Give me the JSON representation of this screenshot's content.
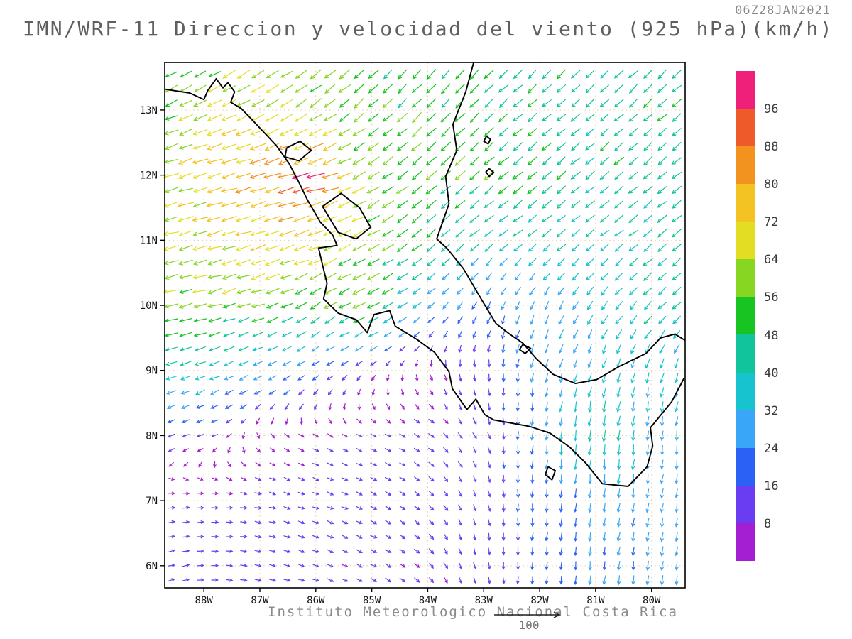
{
  "header": {
    "model_title": "IMN/WRF-11 Direccion y velocidad del viento (925 hPa)(km/h)",
    "datetime": "06Z28JAN2021"
  },
  "footer": {
    "caption": "Instituto Meteorologico Nacional Costa Rica",
    "reference_vector_label": "100"
  },
  "axes": {
    "lat": [
      {
        "label": "13N",
        "value": 13
      },
      {
        "label": "12N",
        "value": 12
      },
      {
        "label": "11N",
        "value": 11
      },
      {
        "label": "10N",
        "value": 10
      },
      {
        "label": "9N",
        "value": 9
      },
      {
        "label": "8N",
        "value": 8
      },
      {
        "label": "7N",
        "value": 7
      },
      {
        "label": "6N",
        "value": 6
      }
    ],
    "lon": [
      {
        "label": "88W",
        "value": -88
      },
      {
        "label": "87W",
        "value": -87
      },
      {
        "label": "86W",
        "value": -86
      },
      {
        "label": "85W",
        "value": -85
      },
      {
        "label": "84W",
        "value": -84
      },
      {
        "label": "83W",
        "value": -83
      },
      {
        "label": "82W",
        "value": -82
      },
      {
        "label": "81W",
        "value": -81
      },
      {
        "label": "80W",
        "value": -80
      }
    ]
  },
  "chart_data": {
    "type": "vector-field",
    "title": "IMN/WRF-11 Direccion y velocidad del viento (925 hPa)(km/h)",
    "valid_time": "06Z28JAN2021",
    "units": "km/h",
    "level_hpa": 925,
    "source": "Instituto Meteorologico Nacional Costa Rica",
    "lon_range": [
      -88.7,
      -79.4
    ],
    "lat_range": [
      5.66,
      13.73
    ],
    "reference_speed": 100,
    "speed_colors": {
      "thresholds": [
        8,
        16,
        24,
        32,
        40,
        48,
        56,
        64,
        72,
        80,
        88,
        96
      ],
      "colors": [
        "#a31fd1",
        "#6a3df2",
        "#2b62f5",
        "#3aa6f7",
        "#17c3cf",
        "#12c49b",
        "#18c421",
        "#86d622",
        "#e3de24",
        "#f2c322",
        "#f2921f",
        "#ef5a2a",
        "#ef2079"
      ]
    },
    "grid": {
      "lons": [
        -89,
        -88,
        -87,
        -86,
        -85,
        -84,
        -83,
        -82,
        -81,
        -80,
        -79
      ],
      "lats": [
        6,
        7,
        8,
        9,
        10,
        11,
        12,
        13,
        14
      ],
      "u": [
        [
          8,
          9,
          9,
          8,
          8,
          6,
          2,
          -2,
          -3,
          -4,
          -6
        ],
        [
          9,
          10,
          10,
          9,
          9,
          7,
          3,
          -2,
          -3,
          -4,
          -6
        ],
        [
          -14,
          -10,
          2,
          7,
          8,
          8,
          4,
          -4,
          -4,
          -2,
          -4
        ],
        [
          -42,
          -36,
          -26,
          -16,
          -6,
          2,
          2,
          -6,
          -8,
          -10,
          -12
        ],
        [
          -58,
          -56,
          -52,
          -46,
          -50,
          -22,
          -10,
          -12,
          -22,
          -28,
          -30
        ],
        [
          -62,
          -66,
          -70,
          -66,
          -50,
          -36,
          -30,
          -30,
          -30,
          -32,
          -34
        ],
        [
          -60,
          -70,
          -74,
          -90,
          -50,
          -42,
          -40,
          -36,
          -34,
          -34,
          -36
        ],
        [
          -50,
          -58,
          -62,
          -48,
          -40,
          -36,
          -36,
          -34,
          -32,
          -34,
          -34
        ],
        [
          -36,
          -44,
          -52,
          -44,
          -38,
          -36,
          -34,
          -32,
          -32,
          -32,
          -32
        ]
      ],
      "v": [
        [
          2,
          1,
          -2,
          -3,
          -4,
          -6,
          -10,
          -18,
          -24,
          -26,
          -28
        ],
        [
          2,
          0,
          -2,
          -3,
          -4,
          -7,
          -12,
          -20,
          -26,
          -26,
          -28
        ],
        [
          -5,
          -4,
          -5,
          -4,
          -4,
          -5,
          -9,
          -28,
          -44,
          -30,
          -30
        ],
        [
          -14,
          -14,
          -14,
          -10,
          -6,
          -6,
          -12,
          -26,
          -32,
          -34,
          -32
        ],
        [
          -12,
          -14,
          -16,
          -26,
          -24,
          -18,
          -22,
          -26,
          -28,
          -28,
          -24
        ],
        [
          -16,
          -18,
          -22,
          -24,
          -28,
          -28,
          -26,
          -24,
          -24,
          -26,
          -26
        ],
        [
          -16,
          -20,
          -22,
          -26,
          -30,
          -34,
          -34,
          -30,
          -28,
          -28,
          -28
        ],
        [
          -20,
          -24,
          -28,
          -34,
          -36,
          -36,
          -34,
          -30,
          -30,
          -30,
          -30
        ],
        [
          -24,
          -28,
          -30,
          -34,
          -36,
          -36,
          -34,
          -32,
          -30,
          -30,
          -30
        ]
      ]
    },
    "map_outline": [
      [
        [
          -88.7,
          13.32
        ],
        [
          -88.25,
          13.26
        ],
        [
          -88.0,
          13.16
        ],
        [
          -87.93,
          13.3
        ],
        [
          -87.78,
          13.48
        ],
        [
          -87.66,
          13.34
        ],
        [
          -87.57,
          13.42
        ],
        [
          -87.45,
          13.28
        ],
        [
          -87.52,
          13.12
        ],
        [
          -87.33,
          13.02
        ],
        [
          -87.15,
          12.86
        ],
        [
          -86.93,
          12.66
        ],
        [
          -86.7,
          12.45
        ],
        [
          -86.48,
          12.18
        ],
        [
          -86.32,
          11.92
        ],
        [
          -86.15,
          11.62
        ],
        [
          -85.92,
          11.28
        ],
        [
          -85.7,
          11.08
        ],
        [
          -85.62,
          10.92
        ],
        [
          -85.95,
          10.88
        ],
        [
          -85.88,
          10.62
        ],
        [
          -85.8,
          10.34
        ],
        [
          -85.86,
          10.1
        ],
        [
          -85.6,
          9.88
        ],
        [
          -85.28,
          9.78
        ],
        [
          -85.08,
          9.58
        ],
        [
          -84.96,
          9.86
        ],
        [
          -84.68,
          9.92
        ],
        [
          -84.58,
          9.68
        ],
        [
          -84.2,
          9.48
        ],
        [
          -83.88,
          9.28
        ],
        [
          -83.62,
          8.98
        ],
        [
          -83.56,
          8.72
        ],
        [
          -83.3,
          8.4
        ],
        [
          -83.14,
          8.56
        ],
        [
          -82.98,
          8.32
        ],
        [
          -82.82,
          8.24
        ],
        [
          -82.56,
          8.2
        ],
        [
          -82.18,
          8.14
        ],
        [
          -81.82,
          8.04
        ],
        [
          -81.46,
          7.82
        ],
        [
          -81.18,
          7.58
        ],
        [
          -80.88,
          7.26
        ],
        [
          -80.42,
          7.22
        ],
        [
          -80.08,
          7.52
        ],
        [
          -79.98,
          7.84
        ],
        [
          -80.02,
          8.12
        ],
        [
          -79.64,
          8.52
        ],
        [
          -79.42,
          8.88
        ]
      ],
      [
        [
          -83.18,
          13.73
        ],
        [
          -83.32,
          13.28
        ],
        [
          -83.55,
          12.78
        ],
        [
          -83.48,
          12.38
        ],
        [
          -83.68,
          11.98
        ],
        [
          -83.62,
          11.56
        ],
        [
          -83.84,
          11.02
        ],
        [
          -83.66,
          10.88
        ],
        [
          -83.36,
          10.56
        ],
        [
          -83.02,
          10.06
        ],
        [
          -82.78,
          9.72
        ],
        [
          -82.54,
          9.56
        ],
        [
          -82.3,
          9.42
        ],
        [
          -82.06,
          9.18
        ],
        [
          -81.76,
          8.94
        ],
        [
          -81.36,
          8.8
        ],
        [
          -80.98,
          8.86
        ],
        [
          -80.58,
          9.06
        ],
        [
          -80.1,
          9.26
        ],
        [
          -79.84,
          9.5
        ],
        [
          -79.58,
          9.56
        ],
        [
          -79.4,
          9.46
        ]
      ],
      [
        [
          -85.88,
          11.52
        ],
        [
          -85.55,
          11.72
        ],
        [
          -85.22,
          11.5
        ],
        [
          -85.02,
          11.2
        ],
        [
          -85.28,
          11.02
        ],
        [
          -85.6,
          11.12
        ],
        [
          -85.88,
          11.52
        ]
      ],
      [
        [
          -86.52,
          12.42
        ],
        [
          -86.28,
          12.52
        ],
        [
          -86.08,
          12.38
        ],
        [
          -86.3,
          12.22
        ],
        [
          -86.55,
          12.28
        ],
        [
          -86.52,
          12.42
        ]
      ],
      [
        [
          -82.95,
          12.6
        ],
        [
          -82.88,
          12.55
        ],
        [
          -82.92,
          12.48
        ],
        [
          -83.0,
          12.52
        ],
        [
          -82.95,
          12.6
        ]
      ],
      [
        [
          -82.9,
          12.1
        ],
        [
          -82.82,
          12.04
        ],
        [
          -82.9,
          11.98
        ],
        [
          -82.96,
          12.05
        ],
        [
          -82.9,
          12.1
        ]
      ],
      [
        [
          -81.85,
          7.52
        ],
        [
          -81.72,
          7.46
        ],
        [
          -81.78,
          7.32
        ],
        [
          -81.9,
          7.4
        ],
        [
          -81.85,
          7.52
        ]
      ],
      [
        [
          -82.3,
          9.4
        ],
        [
          -82.16,
          9.34
        ],
        [
          -82.26,
          9.26
        ],
        [
          -82.36,
          9.32
        ],
        [
          -82.3,
          9.4
        ]
      ]
    ]
  }
}
